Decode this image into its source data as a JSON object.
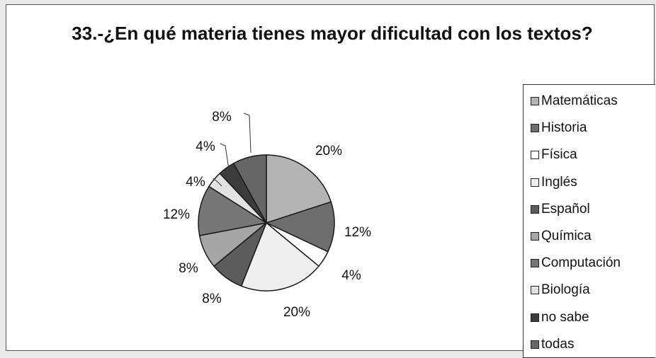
{
  "chart_data": {
    "type": "pie",
    "title": "33.-¿En qué materia tienes mayor dificultad con los textos?",
    "legend_position": "right",
    "slices": [
      {
        "label": "Matemáticas",
        "value": 20,
        "display": "20%",
        "color": "#b4b4b4"
      },
      {
        "label": "Historia",
        "value": 12,
        "display": "12%",
        "color": "#6e6e6e"
      },
      {
        "label": "Física",
        "value": 4,
        "display": "4%",
        "color": "#ffffff"
      },
      {
        "label": "Inglés",
        "value": 20,
        "display": "20%",
        "color": "#efefef"
      },
      {
        "label": "Español",
        "value": 8,
        "display": "8%",
        "color": "#5c5c5c"
      },
      {
        "label": "Química",
        "value": 8,
        "display": "8%",
        "color": "#a6a6a6"
      },
      {
        "label": "Computación",
        "value": 12,
        "display": "12%",
        "color": "#777777"
      },
      {
        "label": "Biología",
        "value": 4,
        "display": "4%",
        "color": "#e2e2e2"
      },
      {
        "label": "no sabe",
        "value": 4,
        "display": "4%",
        "color": "#3c3c3c"
      },
      {
        "label": "todas",
        "value": 8,
        "display": "8%",
        "color": "#666666"
      }
    ]
  }
}
